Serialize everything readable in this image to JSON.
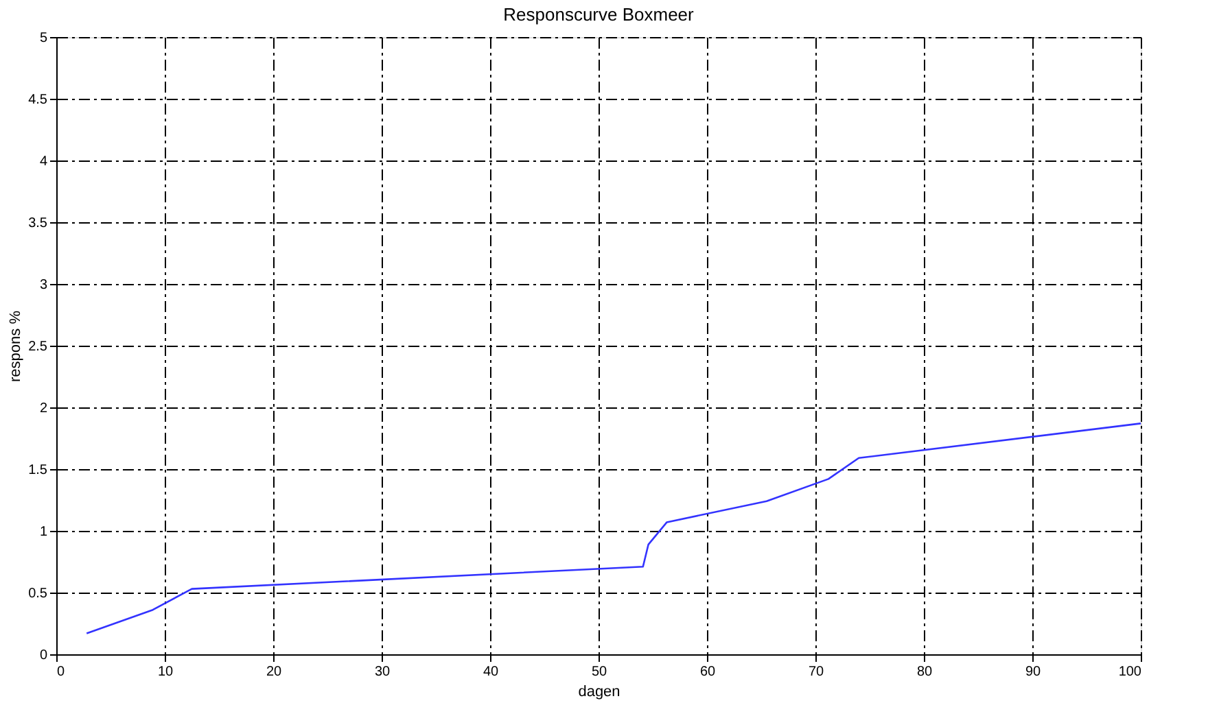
{
  "chart_data": {
    "type": "line",
    "title": "Responscurve Boxmeer",
    "xlabel": "dagen",
    "ylabel": "respons %",
    "x": [
      2.8,
      8.9,
      12.5,
      54.1,
      54.6,
      56.3,
      65.5,
      71.2,
      74.0,
      100
    ],
    "series": [
      {
        "color": "#3333ff",
        "values": [
          0.17,
          0.36,
          0.53,
          0.71,
          0.89,
          1.07,
          1.24,
          1.42,
          1.59,
          1.87
        ]
      }
    ],
    "xlim": [
      0,
      100
    ],
    "xticks": [
      0,
      10,
      20,
      30,
      40,
      50,
      60,
      70,
      80,
      90,
      100
    ],
    "ylim": [
      0,
      5
    ],
    "yticks": [
      0,
      0.5,
      1,
      1.5,
      2,
      2.5,
      3,
      3.5,
      4,
      4.5,
      5
    ],
    "grid": true,
    "marker": "none",
    "line_style": "solid"
  }
}
